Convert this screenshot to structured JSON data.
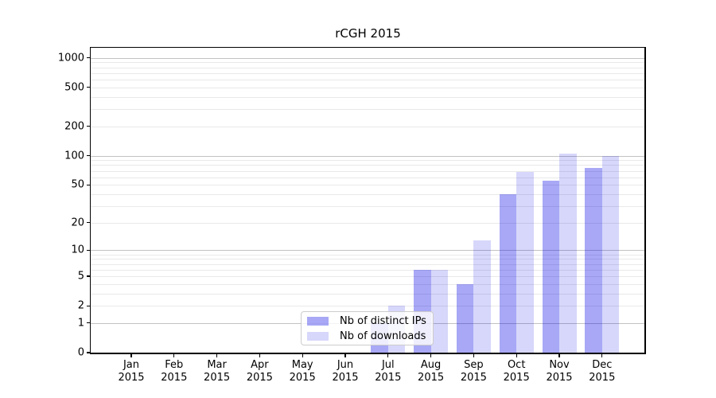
{
  "figure": {
    "title": "rCGH 2015"
  },
  "legend": {
    "items": [
      {
        "label": "Nb of distinct IPs",
        "color": "rgba(0,0,230,0.34)"
      },
      {
        "label": "Nb of downloads",
        "color": "rgba(0,0,230,0.155)"
      }
    ]
  },
  "chart_data": {
    "type": "bar",
    "title": "rCGH 2015",
    "categories": [
      "Jan",
      "Feb",
      "Mar",
      "Apr",
      "May",
      "Jun",
      "Jul",
      "Aug",
      "Sep",
      "Oct",
      "Nov",
      "Dec"
    ],
    "year": "2015",
    "series": [
      {
        "name": "Nb of distinct IPs",
        "color": "rgba(0,0,230,0.34)",
        "values": [
          0,
          0,
          0,
          0,
          0,
          0,
          1,
          6,
          4,
          40,
          55,
          75
        ]
      },
      {
        "name": "Nb of downloads",
        "color": "rgba(0,0,230,0.155)",
        "values": [
          0,
          0,
          0,
          0,
          0,
          0,
          2,
          6,
          13,
          68,
          105,
          100
        ]
      }
    ],
    "xlabel": "",
    "ylabel": "",
    "yscale": "log1p",
    "yticks": [
      0,
      1,
      2,
      5,
      10,
      20,
      50,
      100,
      200,
      500,
      1000
    ],
    "ylim": [
      0,
      1268
    ],
    "grid_major": [
      1,
      10,
      100,
      1000
    ],
    "grid_minor": [
      2,
      3,
      4,
      5,
      6,
      7,
      8,
      9,
      20,
      30,
      40,
      50,
      60,
      70,
      80,
      90,
      200,
      300,
      400,
      500,
      600,
      700,
      800,
      900
    ],
    "legend_position": "lower center"
  }
}
